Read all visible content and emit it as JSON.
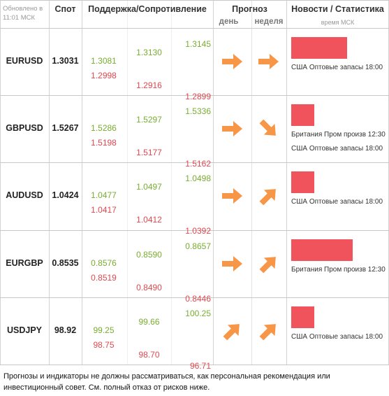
{
  "header": {
    "updated": "Обновлено в 11:01 МСК",
    "spot": "Спот",
    "levels": "Поддержка/Сопротивление",
    "forecast": "Прогноз",
    "day": "день",
    "week": "неделя",
    "news": "Новости / Статистика",
    "time": "время МСК"
  },
  "rows": [
    {
      "pair": "EURUSD",
      "spot": "1.3031",
      "levels": [
        [
          "1.3081",
          "1.2998"
        ],
        [
          "1.3130",
          "1.2916"
        ],
        [
          "1.3145",
          "1.2899"
        ]
      ],
      "day": "right",
      "week": "right",
      "news": [
        "США Оптовые запасы 18:00"
      ]
    },
    {
      "pair": "GBPUSD",
      "spot": "1.5267",
      "levels": [
        [
          "1.5286",
          "1.5198"
        ],
        [
          "1.5297",
          "1.5177"
        ],
        [
          "1.5336",
          "1.5162"
        ]
      ],
      "day": "right",
      "week": "down-right",
      "news": [
        "Британия Пром произв 12:30",
        "США Оптовые запасы 18:00"
      ]
    },
    {
      "pair": "AUDUSD",
      "spot": "1.0424",
      "levels": [
        [
          "1.0477",
          "1.0417"
        ],
        [
          "1.0497",
          "1.0412"
        ],
        [
          "1.0498",
          "1.0392"
        ]
      ],
      "day": "right",
      "week": "up-right",
      "news": [
        "США Оптовые запасы 18:00"
      ]
    },
    {
      "pair": "EURGBP",
      "spot": "0.8535",
      "levels": [
        [
          "0.8576",
          "0.8519"
        ],
        [
          "0.8590",
          "0.8490"
        ],
        [
          "0.8657",
          "0.8446"
        ]
      ],
      "day": "right",
      "week": "up-right",
      "news": [
        "Британия Пром произв 12:30"
      ]
    },
    {
      "pair": "USDJPY",
      "spot": "98.92",
      "levels": [
        [
          "99.25",
          "98.75"
        ],
        [
          "99.66",
          "98.70"
        ],
        [
          "100.25",
          "96.71"
        ]
      ],
      "day": "up-right",
      "week": "up-right",
      "news": [
        "США Оптовые запасы 18:00"
      ]
    }
  ],
  "footer": "Прогнозы и индикаторы не должны рассматриваться, как персональная рекомендация или инвестиционный совет. См. полный отказ от рисков ниже."
}
